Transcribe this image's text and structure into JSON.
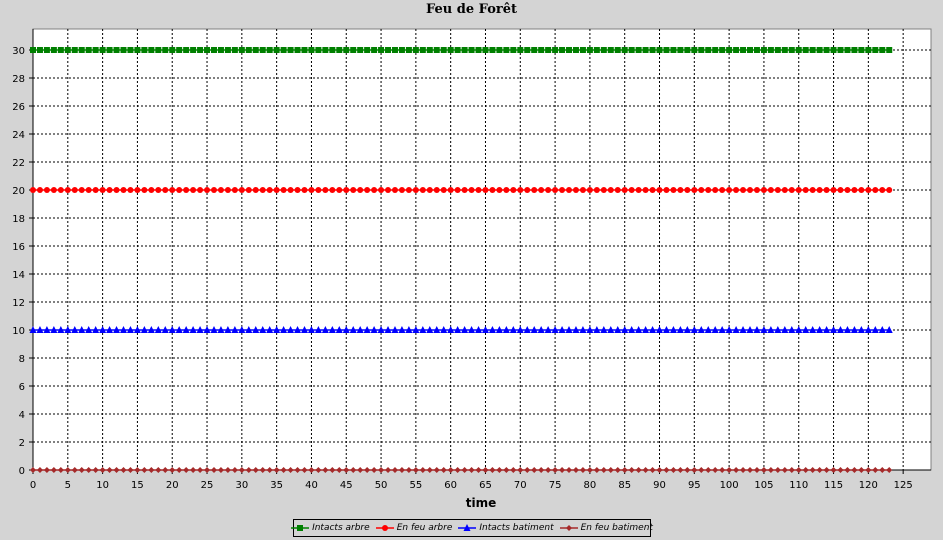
{
  "chart_data": {
    "type": "line",
    "title": "Feu de Forêt",
    "xlabel": "time",
    "ylabel": "",
    "xlim": [
      0,
      129
    ],
    "ylim": [
      0,
      31.5
    ],
    "x_ticks": [
      0,
      5,
      10,
      15,
      20,
      25,
      30,
      35,
      40,
      45,
      50,
      55,
      60,
      65,
      70,
      75,
      80,
      85,
      90,
      95,
      100,
      105,
      110,
      115,
      120,
      125
    ],
    "y_ticks": [
      0,
      2,
      4,
      6,
      8,
      10,
      12,
      14,
      16,
      18,
      20,
      22,
      24,
      26,
      28,
      30
    ],
    "grid": true,
    "legend_position": "bottom",
    "x_range": [
      0,
      123
    ],
    "series": [
      {
        "name": "Intacts arbre",
        "value": 30,
        "color": "#008000",
        "marker": "square"
      },
      {
        "name": "En feu arbre",
        "value": 20,
        "color": "#ff0000",
        "marker": "circle"
      },
      {
        "name": "Intacts batiment",
        "value": 10,
        "color": "#0000ff",
        "marker": "triangle"
      },
      {
        "name": "En feu batiment",
        "value": 0,
        "color": "#a52a2a",
        "marker": "diamond"
      }
    ]
  }
}
